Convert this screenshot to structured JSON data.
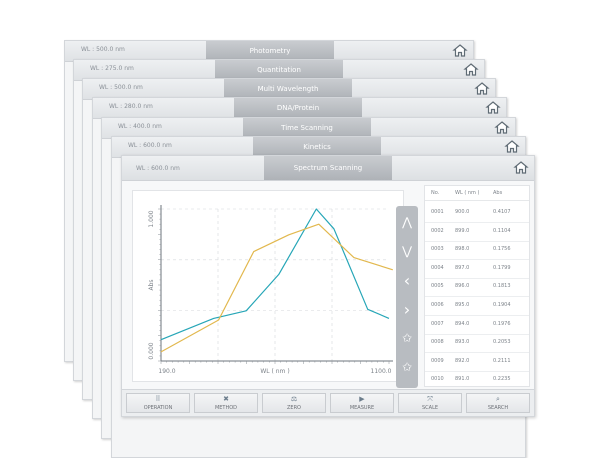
{
  "windows": [
    {
      "wl": "WL :  500.0 nm",
      "title": "Photometry"
    },
    {
      "wl": "WL :  275.0 nm",
      "title": "Quantitation"
    },
    {
      "wl": "WL :  500.0 nm",
      "title": "Multi Wavelength"
    },
    {
      "wl": "WL :  280.0 nm",
      "title": "DNA/Protein"
    },
    {
      "wl": "WL :  400.0 nm",
      "title": "Time Scanning"
    },
    {
      "wl": "WL :  600.0 nm",
      "title": "Kinetics"
    }
  ],
  "main": {
    "wl": "WL :  600.0 nm",
    "title": "Spectrum Scanning",
    "icons": {
      "home": "home-icon"
    }
  },
  "chart_data": {
    "type": "line",
    "xlabel": "WL ( nm )",
    "ylabel": "Abs",
    "x_tick_labels": [
      "190.0",
      "1100.0"
    ],
    "y_tick_labels": [
      "0.000",
      "1.000"
    ],
    "xlim": [
      190,
      1100
    ],
    "ylim": [
      0,
      1
    ],
    "grid": true,
    "series": [
      {
        "color": "#26a6b7",
        "x": [
          190,
          400,
          530,
          660,
          810,
          880,
          1015,
          1100
        ],
        "y": [
          0.14,
          0.28,
          0.33,
          0.57,
          1.0,
          0.87,
          0.34,
          0.28
        ]
      },
      {
        "color": "#e2b84e",
        "x": [
          190,
          420,
          560,
          700,
          820,
          960,
          1115
        ],
        "y": [
          0.06,
          0.27,
          0.72,
          0.83,
          0.9,
          0.68,
          0.6
        ]
      }
    ]
  },
  "side_toolbar": [
    {
      "icon": "peak-icon",
      "glyph": "⋀"
    },
    {
      "icon": "valley-icon",
      "glyph": "⋁"
    },
    {
      "icon": "left-icon",
      "glyph": "‹"
    },
    {
      "icon": "right-icon",
      "glyph": "›"
    },
    {
      "icon": "star-up-icon",
      "glyph": "✩"
    },
    {
      "icon": "star-down-icon",
      "glyph": "✩"
    }
  ],
  "table": {
    "headers": [
      "No.",
      "WL ( nm )",
      "Abs"
    ],
    "rows": [
      [
        "0001",
        "900.0",
        "0.4107"
      ],
      [
        "0002",
        "899.0",
        "0.1104"
      ],
      [
        "0003",
        "898.0",
        "0.1756"
      ],
      [
        "0004",
        "897.0",
        "0.1799"
      ],
      [
        "0005",
        "896.0",
        "0.1813"
      ],
      [
        "0006",
        "895.0",
        "0.1904"
      ],
      [
        "0007",
        "894.0",
        "0.1976"
      ],
      [
        "0008",
        "893.0",
        "0.2053"
      ],
      [
        "0009",
        "892.0",
        "0.2111"
      ],
      [
        "0010",
        "891.0",
        "0.2235"
      ],
      [
        "0011",
        "890.0",
        "0.2401"
      ]
    ]
  },
  "bottom_bar": [
    {
      "label": "OPERATION",
      "icon": "grid-icon",
      "glyph": "⠿"
    },
    {
      "label": "METHOD",
      "icon": "tools-icon",
      "glyph": "✖"
    },
    {
      "label": "ZERO",
      "icon": "balance-icon",
      "glyph": "⚖"
    },
    {
      "label": "MEASURE",
      "icon": "play-icon",
      "glyph": "▶"
    },
    {
      "label": "SCALE",
      "icon": "scale-icon",
      "glyph": "⤧"
    },
    {
      "label": "SEARCH",
      "icon": "search-icon",
      "glyph": "⌕"
    }
  ]
}
